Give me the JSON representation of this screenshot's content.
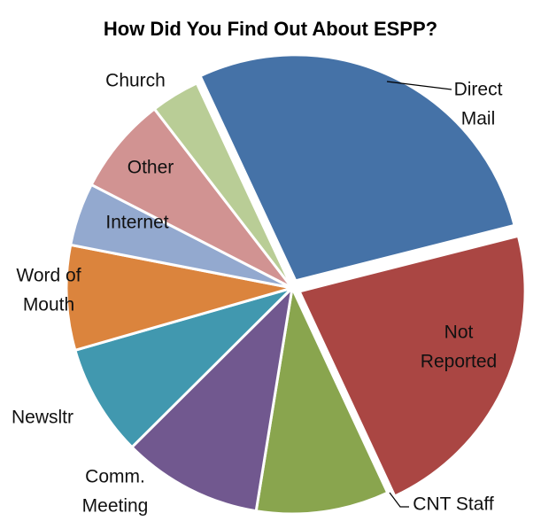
{
  "chart_data": {
    "type": "pie",
    "title": "How Did You Find Out About ESPP?",
    "categories": [
      "Direct\nMail",
      "Not\nReported",
      "CNT Staff",
      "Comm.\nMeeting",
      "Newsltr",
      "Word of\nMouth",
      "Internet",
      "Other",
      "Church"
    ],
    "values": [
      28,
      22,
      9.5,
      10,
      8,
      7.5,
      4.5,
      7,
      3.5
    ],
    "colors": [
      "#4572a7",
      "#aa4643",
      "#89a54e",
      "#71588f",
      "#4198af",
      "#db843d",
      "#93a9cf",
      "#d19392",
      "#b9cd96"
    ]
  }
}
